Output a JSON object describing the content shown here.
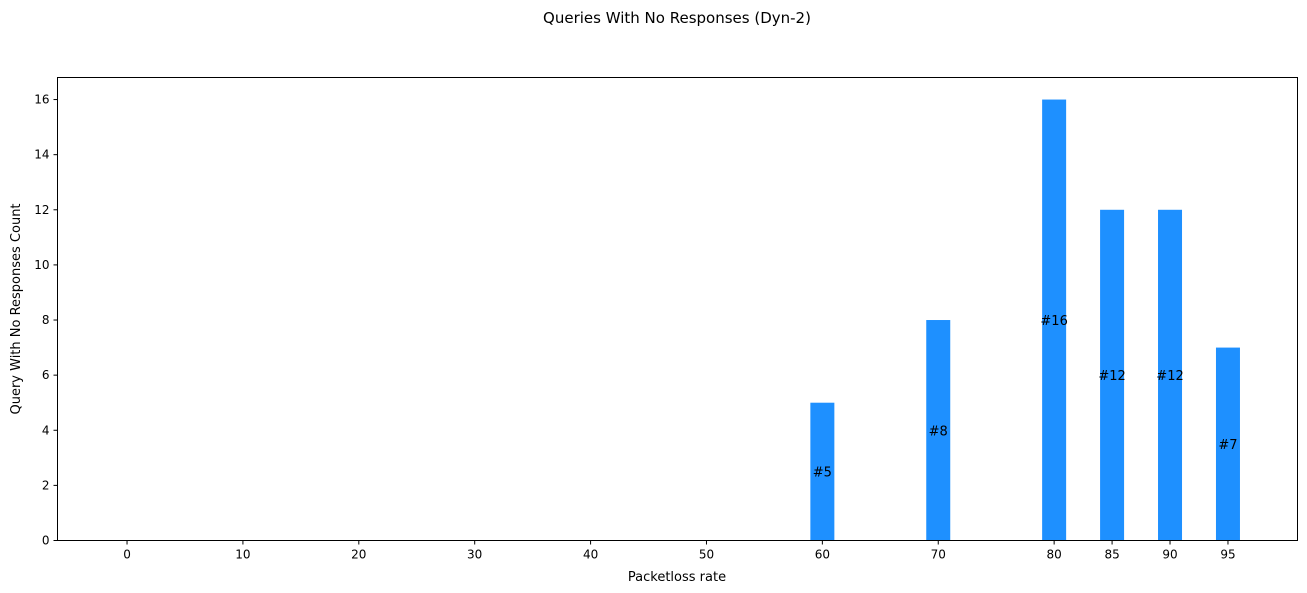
{
  "chart_data": {
    "type": "bar",
    "title": "Queries With No Responses (Dyn-2)",
    "xlabel": "Packetloss rate",
    "ylabel": "Query With No Responses Count",
    "x": [
      0,
      10,
      20,
      30,
      40,
      50,
      60,
      70,
      80,
      85,
      90,
      95
    ],
    "values": [
      0,
      0,
      0,
      0,
      0,
      0,
      5,
      8,
      16,
      12,
      12,
      7
    ],
    "bar_labels": [
      "",
      "",
      "",
      "",
      "",
      "",
      "#5",
      "#8",
      "#16",
      "#12",
      "#12",
      "#7"
    ],
    "xlim": [
      -6,
      101
    ],
    "ylim": [
      0,
      16.8
    ],
    "yticks": [
      0,
      2,
      4,
      6,
      8,
      10,
      12,
      14,
      16
    ],
    "xticks": [
      0,
      10,
      20,
      30,
      40,
      50,
      60,
      70,
      80,
      85,
      90,
      95
    ],
    "bar_color": "#1E90FF",
    "grid": false
  }
}
